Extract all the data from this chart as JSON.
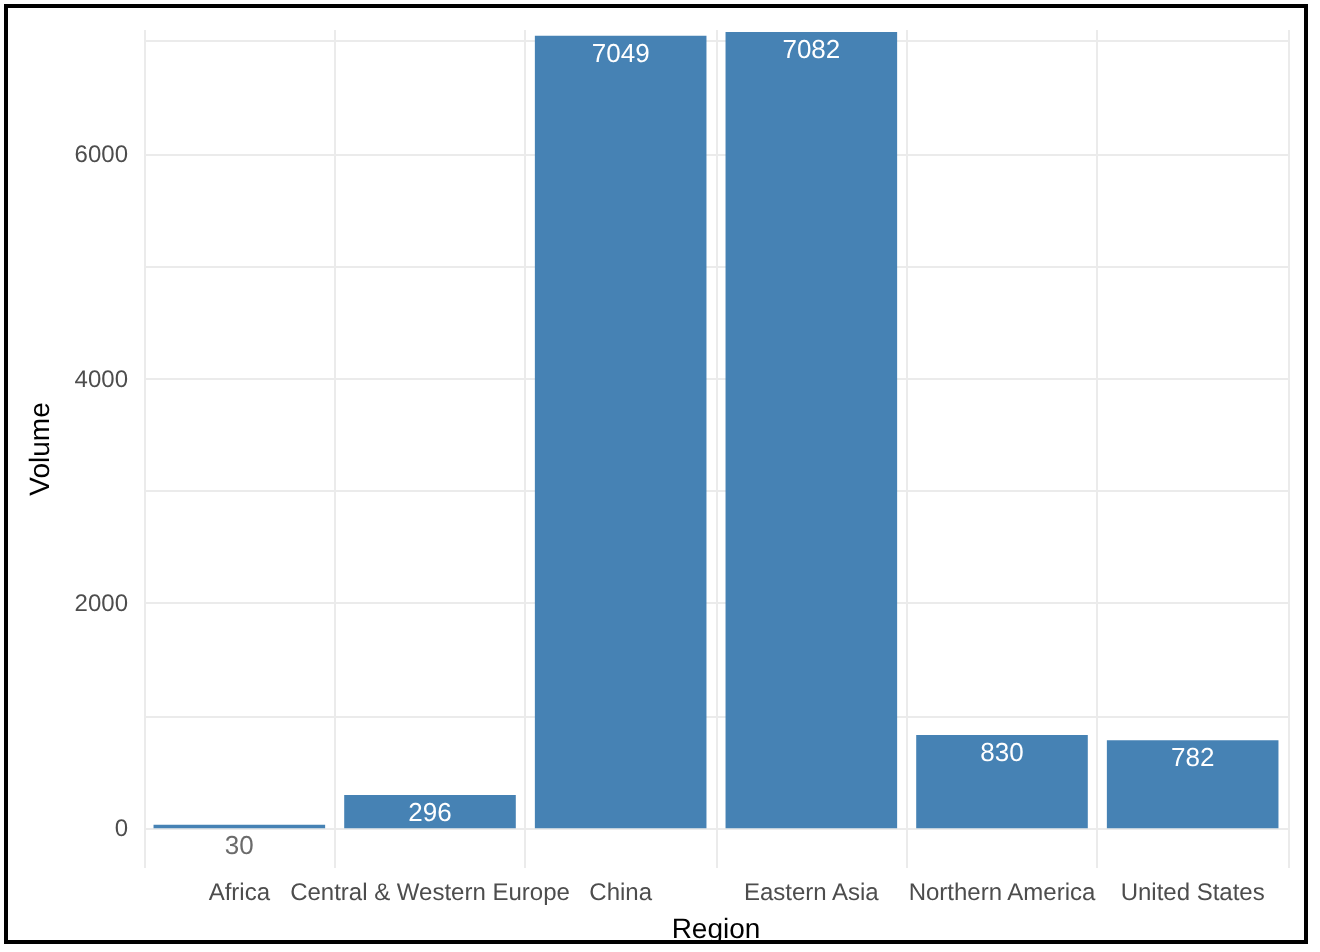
{
  "chart_data": {
    "type": "bar",
    "xlabel": "Region",
    "ylabel": "Volume",
    "categories": [
      "Africa",
      "Central & Western Europe",
      "China",
      "Eastern Asia",
      "Northern America",
      "United States"
    ],
    "values": [
      30,
      296,
      7049,
      7082,
      830,
      782
    ],
    "color": "#4682b4",
    "ylim": [
      -354,
      7100
    ],
    "yticks": [
      0,
      {
        "value": 1000,
        "label": null
      },
      2000,
      {
        "value": 3000,
        "label": null
      },
      4000,
      {
        "value": 5000,
        "label": null
      },
      6000,
      {
        "value": 7000,
        "label": null
      }
    ],
    "grid": true,
    "data_labels": true
  }
}
